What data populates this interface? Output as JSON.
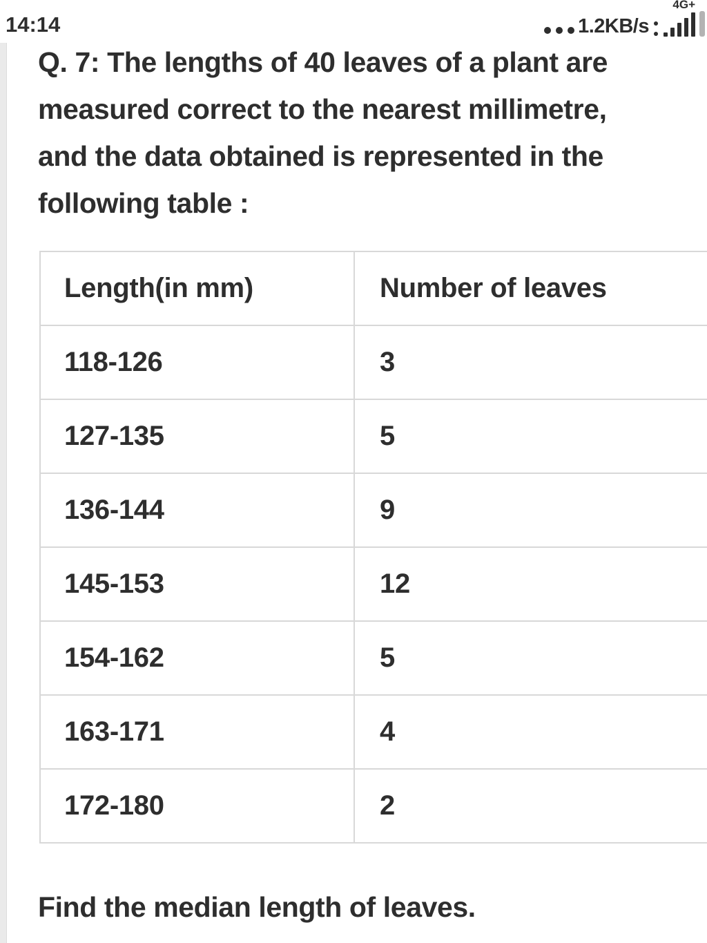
{
  "status_bar": {
    "time": "14:14",
    "network_speed": "1.2KB/s",
    "network_type": "4G+",
    "icons": {
      "menu_dots_icon": "three-dots",
      "sim_colon_icon": "two-stacked-dots",
      "signal_icon": "ascending-signal-bars",
      "battery_icon": "vertical-gray-bar"
    }
  },
  "question": {
    "label": "Q. 7:",
    "lines": [
      "Q. 7: The lengths of 40 leaves of a plant are",
      "measured correct to the nearest millimetre,",
      "and the data obtained is represented in the",
      "following table :"
    ]
  },
  "table": {
    "headers": [
      "Length(in mm)",
      "Number of leaves"
    ],
    "rows": [
      {
        "range": "118-126",
        "count": "3"
      },
      {
        "range": "127-135",
        "count": "5"
      },
      {
        "range": "136-144",
        "count": "9"
      },
      {
        "range": "145-153",
        "count": "12"
      },
      {
        "range": "154-162",
        "count": "5"
      },
      {
        "range": "163-171",
        "count": "4"
      },
      {
        "range": "172-180",
        "count": "2"
      }
    ]
  },
  "footer": {
    "text": "Find the median length of leaves."
  },
  "colors": {
    "text": "#2e2e2e",
    "table_border": "#d8d8d8",
    "scroll_strip": "#eaeaea",
    "battery": "#b3b3b3",
    "background": "#ffffff"
  }
}
